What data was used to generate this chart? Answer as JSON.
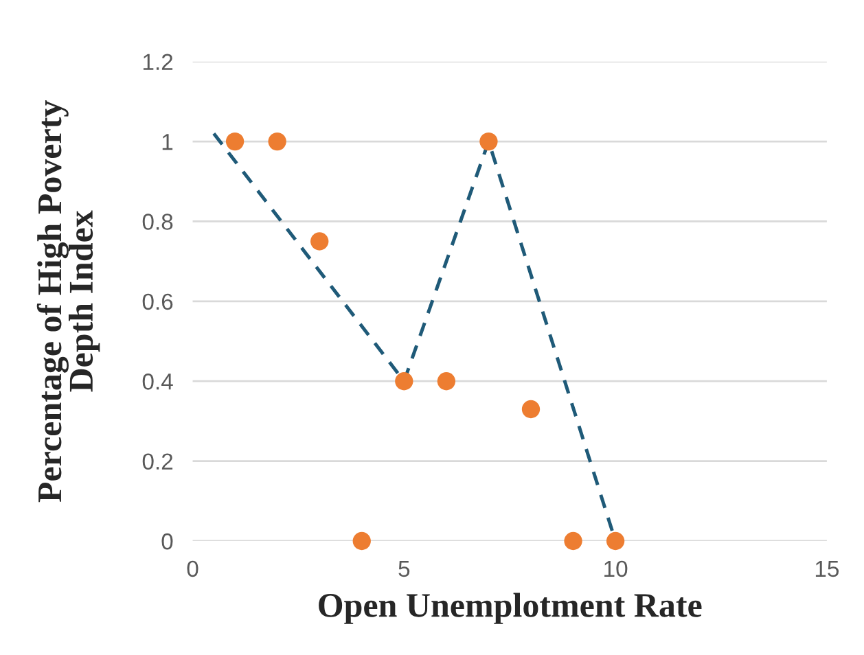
{
  "chart_data": {
    "type": "scatter",
    "xlabel": "Open Unemplotment Rate",
    "ylabel": "Percentage of High Poverty\nDepth Index",
    "x": [
      1,
      2,
      3,
      4,
      5,
      6,
      7,
      8,
      9,
      10
    ],
    "series": [
      {
        "color": "#ed7d31",
        "values": [
          1,
          1,
          0.75,
          0,
          0.4,
          0.4,
          1,
          0.33,
          0,
          0
        ],
        "marker": "circle"
      },
      {
        "type": "line",
        "color": "#1f5a78",
        "x": [
          0.5,
          5,
          7,
          10
        ],
        "values": [
          1.02,
          0.4,
          1.0,
          0
        ],
        "line_style": "dashed",
        "marker": "none"
      }
    ],
    "xlim": [
      0,
      15
    ],
    "xticks": [
      0,
      5,
      10,
      15
    ],
    "ylim": [
      0,
      1.2
    ],
    "yticks": [
      0,
      0.2,
      0.4,
      0.6,
      0.8,
      1,
      1.2
    ],
    "grid": "y"
  }
}
